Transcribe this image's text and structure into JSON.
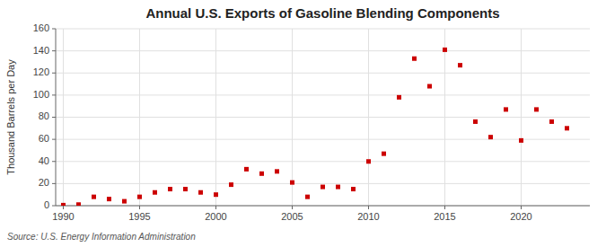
{
  "chart_data": {
    "type": "scatter",
    "title": "Annual U.S. Exports of Gasoline Blending Components",
    "y_label": "Thousand Barrels per Day",
    "annotation": "Source: U.S. Energy Information Administration",
    "x": [
      1990,
      1991,
      1992,
      1993,
      1994,
      1995,
      1996,
      1997,
      1998,
      1999,
      2000,
      2001,
      2002,
      2003,
      2004,
      2005,
      2006,
      2007,
      2008,
      2009,
      2010,
      2011,
      2012,
      2013,
      2014,
      2015,
      2016,
      2017,
      2018,
      2019,
      2020,
      2021,
      2022,
      2023
    ],
    "values": [
      0.5,
      1,
      8,
      6,
      4,
      8,
      12,
      15,
      15,
      12,
      10,
      19,
      33,
      29,
      31,
      21,
      8,
      17,
      17,
      15,
      40,
      47,
      98,
      133,
      108,
      141,
      127,
      76,
      62,
      87,
      59,
      87,
      76,
      70
    ],
    "color": "#cc0000",
    "marker": "square",
    "xlim": [
      1989.5,
      2024.5
    ],
    "ylim": [
      0,
      160
    ],
    "xticks": [
      1990,
      1995,
      2000,
      2005,
      2010,
      2015,
      2020
    ],
    "yticks": [
      0,
      20,
      40,
      60,
      80,
      100,
      120,
      140,
      160
    ],
    "grid": true
  }
}
